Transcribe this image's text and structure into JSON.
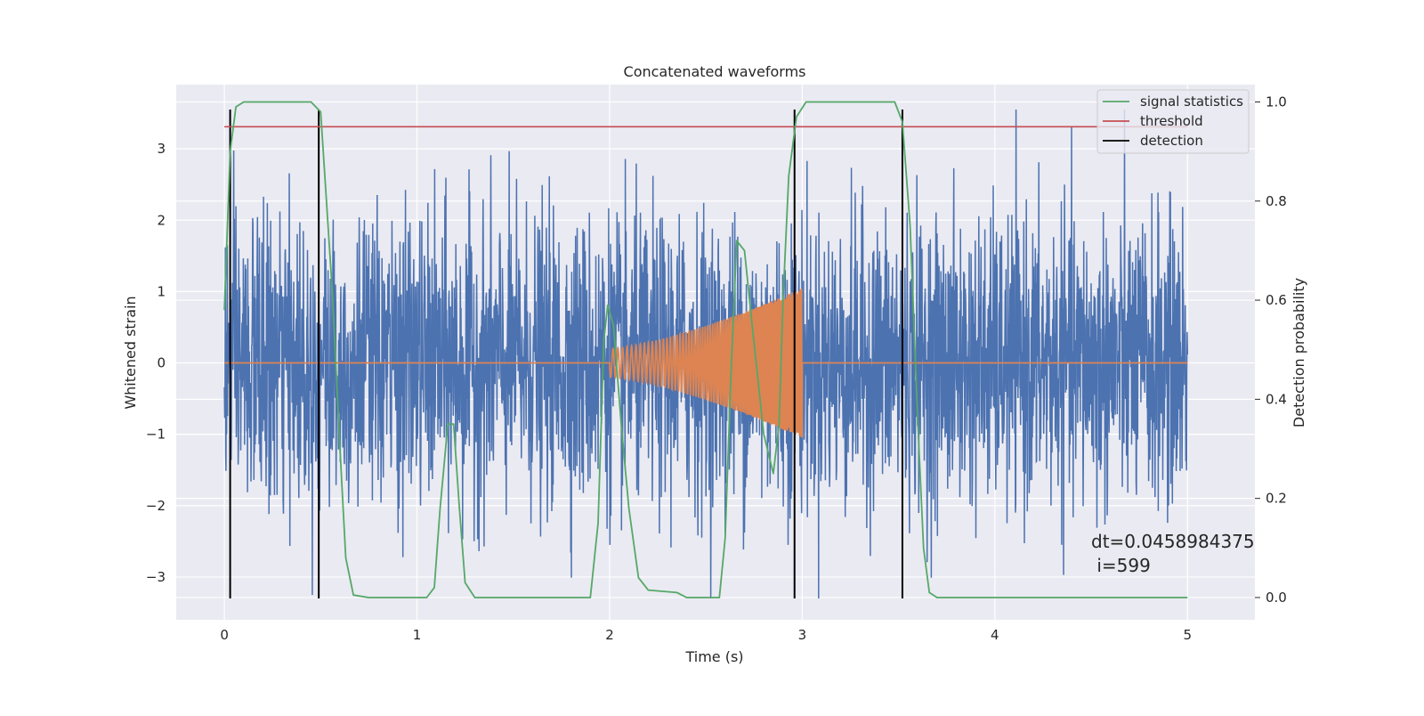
{
  "chart_data": {
    "type": "line",
    "title": "Concatenated waveforms",
    "xlabel": "Time (s)",
    "ylabel": "Whitened strain",
    "y2label": "Detection probability",
    "xlim": [
      -0.25,
      5.35
    ],
    "ylim": [
      -3.6,
      3.9
    ],
    "y2lim": [
      -0.045,
      1.035
    ],
    "x_ticks": [
      0,
      1,
      2,
      3,
      4,
      5
    ],
    "y_ticks": [
      -3,
      -2,
      -1,
      0,
      1,
      2,
      3
    ],
    "y2_ticks": [
      0.0,
      0.2,
      0.4,
      0.6,
      0.8,
      1.0
    ],
    "y2_tick_labels": [
      "0.0",
      "0.2",
      "0.4",
      "0.6",
      "0.8",
      "1.0"
    ],
    "grid": true,
    "legend_position": "top-right",
    "colors": {
      "background": "#eaeaf2",
      "grid": "#ffffff",
      "noise": "#4c72b0",
      "chirp": "#dd8452",
      "signal_statistics": "#55a868",
      "threshold": "#c44e52",
      "detection": "#000000"
    },
    "series": [
      {
        "name": "",
        "role": "whitened strain noise",
        "x_range": [
          0,
          5
        ],
        "typical_amplitude": 1.0,
        "peak_max": 3.55,
        "peak_min": -3.3
      },
      {
        "name": "",
        "role": "injected chirp",
        "x_range": [
          0,
          5
        ],
        "chirp_start": 2.0,
        "chirp_end": 3.0,
        "start_amplitude": 0.2,
        "end_amplitude": 1.05
      },
      {
        "name": "signal statistics",
        "axis": "right",
        "points": [
          [
            0.0,
            0.58
          ],
          [
            0.03,
            0.9
          ],
          [
            0.06,
            0.99
          ],
          [
            0.1,
            1.0
          ],
          [
            0.45,
            1.0
          ],
          [
            0.5,
            0.98
          ],
          [
            0.56,
            0.62
          ],
          [
            0.6,
            0.3
          ],
          [
            0.63,
            0.08
          ],
          [
            0.67,
            0.005
          ],
          [
            0.75,
            0.0
          ],
          [
            1.05,
            0.0
          ],
          [
            1.09,
            0.02
          ],
          [
            1.12,
            0.18
          ],
          [
            1.16,
            0.35
          ],
          [
            1.19,
            0.35
          ],
          [
            1.22,
            0.18
          ],
          [
            1.25,
            0.03
          ],
          [
            1.3,
            0.0
          ],
          [
            1.9,
            0.0
          ],
          [
            1.94,
            0.15
          ],
          [
            1.97,
            0.52
          ],
          [
            1.99,
            0.59
          ],
          [
            2.02,
            0.55
          ],
          [
            2.06,
            0.35
          ],
          [
            2.1,
            0.18
          ],
          [
            2.15,
            0.04
          ],
          [
            2.2,
            0.015
          ],
          [
            2.35,
            0.01
          ],
          [
            2.4,
            0.0
          ],
          [
            2.57,
            0.0
          ],
          [
            2.6,
            0.12
          ],
          [
            2.63,
            0.45
          ],
          [
            2.66,
            0.72
          ],
          [
            2.7,
            0.7
          ],
          [
            2.74,
            0.55
          ],
          [
            2.8,
            0.33
          ],
          [
            2.85,
            0.25
          ],
          [
            2.88,
            0.35
          ],
          [
            2.9,
            0.6
          ],
          [
            2.93,
            0.85
          ],
          [
            2.97,
            0.97
          ],
          [
            3.02,
            1.0
          ],
          [
            3.48,
            1.0
          ],
          [
            3.52,
            0.96
          ],
          [
            3.56,
            0.75
          ],
          [
            3.6,
            0.35
          ],
          [
            3.63,
            0.1
          ],
          [
            3.66,
            0.01
          ],
          [
            3.7,
            0.0
          ],
          [
            5.0,
            0.0
          ]
        ]
      },
      {
        "name": "threshold",
        "axis": "right",
        "x": [
          0,
          5
        ],
        "y": [
          0.95,
          0.95
        ]
      },
      {
        "name": "detection",
        "axis": "left",
        "vertical_lines_x": [
          0.03,
          0.49,
          2.96,
          3.52
        ],
        "y_range": [
          -3.3,
          3.55
        ]
      }
    ],
    "annotation": {
      "line1": "dt=0.0458984375",
      "line2": " i=599"
    }
  }
}
